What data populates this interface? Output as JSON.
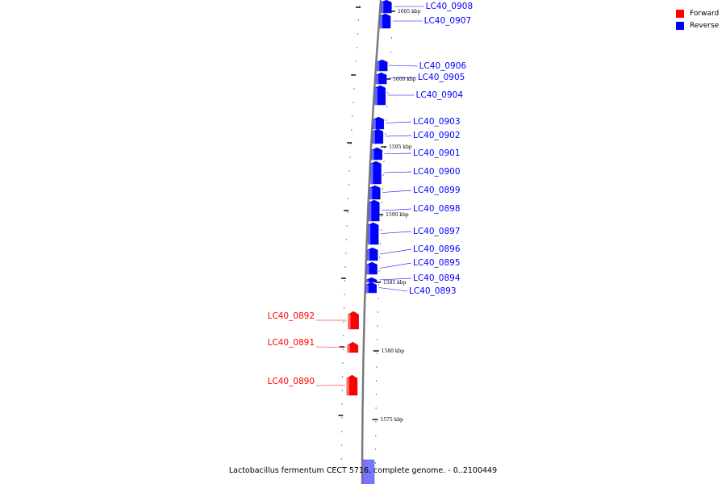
{
  "legend": {
    "forward_label": "Forward",
    "reverse_label": "Reverse",
    "forward_color": "#ff0000",
    "reverse_color": "#0000ff"
  },
  "caption": "Lactobacillus fermentum CECT 5716, complete genome. - 0..2100449",
  "kbp_markers": [
    "1605 kbp",
    "1600 kbp",
    "1595 kbp",
    "1590 kbp",
    "1585 kbp",
    "1580 kbp",
    "1575 kbp"
  ],
  "genes": [
    {
      "label": "LC40_0908",
      "strand": "reverse"
    },
    {
      "label": "LC40_0907",
      "strand": "reverse"
    },
    {
      "label": "LC40_0906",
      "strand": "reverse"
    },
    {
      "label": "LC40_0905",
      "strand": "reverse"
    },
    {
      "label": "LC40_0904",
      "strand": "reverse"
    },
    {
      "label": "LC40_0903",
      "strand": "reverse"
    },
    {
      "label": "LC40_0902",
      "strand": "reverse"
    },
    {
      "label": "LC40_0901",
      "strand": "reverse"
    },
    {
      "label": "LC40_0900",
      "strand": "reverse"
    },
    {
      "label": "LC40_0899",
      "strand": "reverse"
    },
    {
      "label": "LC40_0898",
      "strand": "reverse"
    },
    {
      "label": "LC40_0897",
      "strand": "reverse"
    },
    {
      "label": "LC40_0896",
      "strand": "reverse"
    },
    {
      "label": "LC40_0895",
      "strand": "reverse"
    },
    {
      "label": "LC40_0894",
      "strand": "reverse"
    },
    {
      "label": "LC40_0893",
      "strand": "reverse"
    },
    {
      "label": "LC40_0892",
      "strand": "forward"
    },
    {
      "label": "LC40_0891",
      "strand": "forward"
    },
    {
      "label": "LC40_0890",
      "strand": "forward"
    }
  ]
}
